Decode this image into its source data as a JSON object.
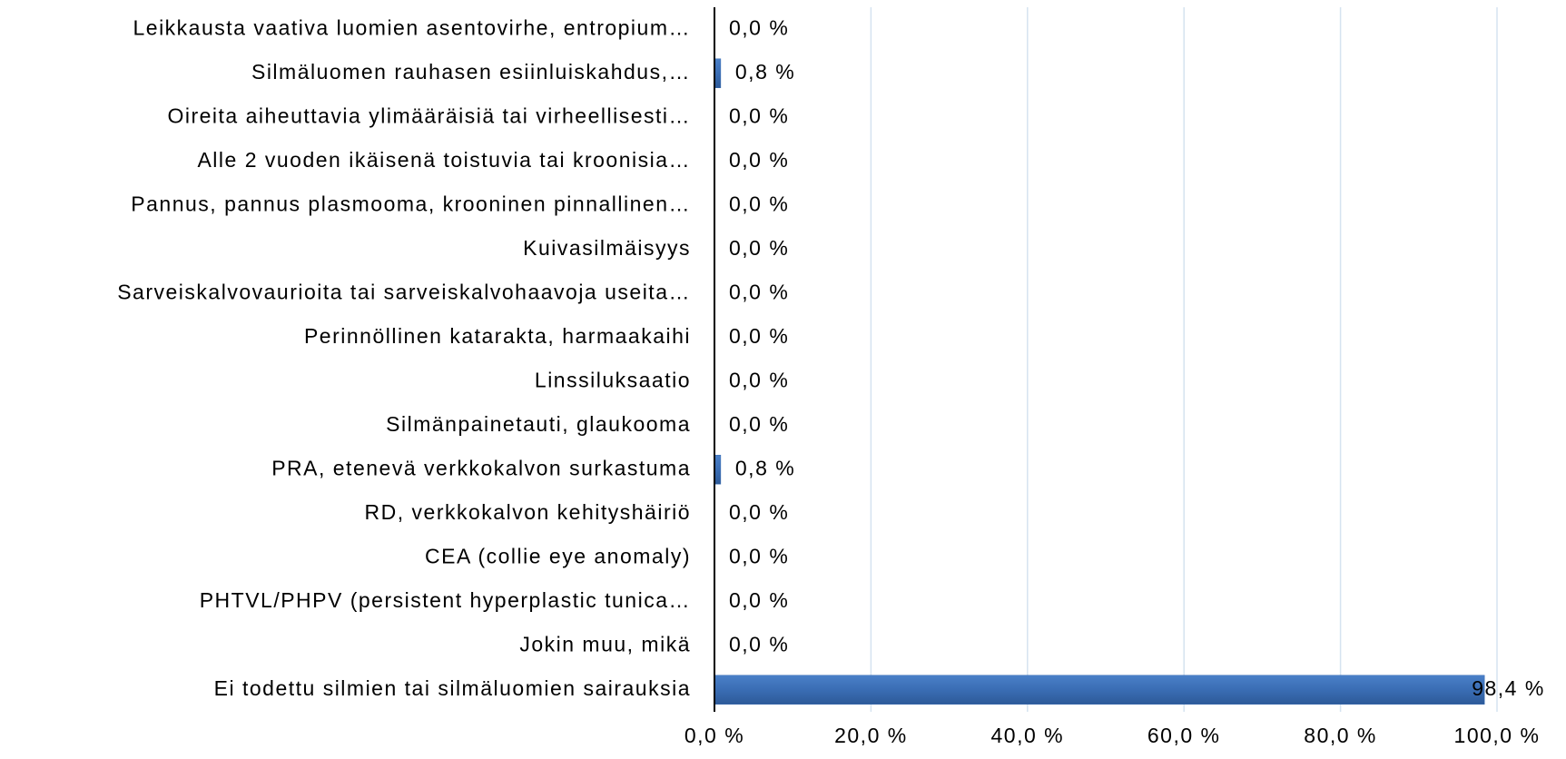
{
  "chart_data": {
    "type": "bar",
    "orientation": "horizontal",
    "categories": [
      "Leikkausta vaativa luomien asentovirhe, entropium…",
      "Silmäluomen rauhasen esiinluiskahdus,…",
      "Oireita aiheuttavia ylimääräisiä tai virheellisesti…",
      "Alle 2 vuoden ikäisenä toistuvia tai kroonisia…",
      "Pannus, pannus plasmooma, krooninen pinnallinen…",
      "Kuivasilmäisyys",
      "Sarveiskalvovaurioita tai sarveiskalvohaavoja useita…",
      "Perinnöllinen katarakta, harmaakaihi",
      "Linssiluksaatio",
      "Silmänpainetauti, glaukooma",
      "PRA, etenevä verkkokalvon surkastuma",
      "RD, verkkokalvon kehityshäiriö",
      "CEA (collie eye anomaly)",
      "PHTVL/PHPV (persistent hyperplastic tunica…",
      "Jokin muu, mikä",
      "Ei todettu silmien tai silmäluomien sairauksia"
    ],
    "values": [
      0,
      0.8,
      0,
      0,
      0,
      0,
      0,
      0,
      0,
      0,
      0.8,
      0,
      0,
      0,
      0,
      98.4
    ],
    "value_labels": [
      "0,0 %",
      "0,8 %",
      "0,0 %",
      "0,0 %",
      "0,0 %",
      "0,0 %",
      "0,0 %",
      "0,0 %",
      "0,0 %",
      "0,0 %",
      "0,8 %",
      "0,0 %",
      "0,0 %",
      "0,0 %",
      "0,0 %",
      "98,4 %"
    ],
    "color": "#3a6db4",
    "xlim": [
      0,
      100
    ],
    "xticks": [
      {
        "value": 0,
        "label": "0,0 %"
      },
      {
        "value": 20,
        "label": "20,0 %"
      },
      {
        "value": 40,
        "label": "40,0 %"
      },
      {
        "value": 60,
        "label": "60,0 %"
      },
      {
        "value": 80,
        "label": "80,0 %"
      },
      {
        "value": 100,
        "label": "100,0 %"
      }
    ],
    "grid": true
  }
}
